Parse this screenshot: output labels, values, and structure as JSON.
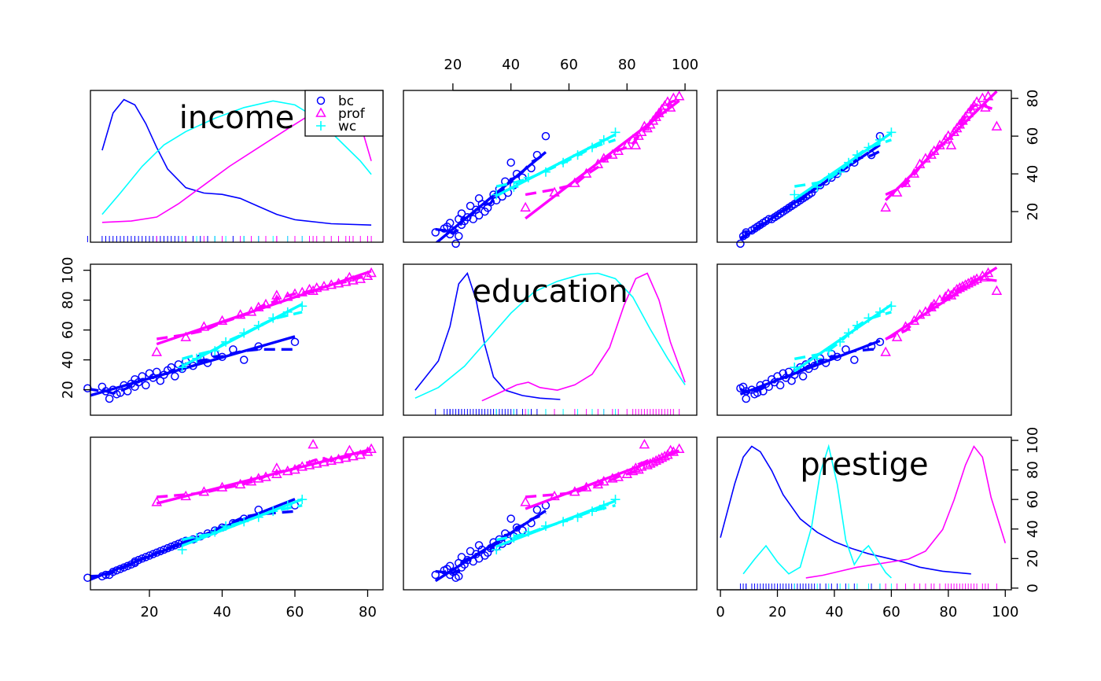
{
  "chart_data": {
    "type": "scatter",
    "title": "",
    "layout": "scatterplot-matrix",
    "variables": [
      "income",
      "education",
      "prestige"
    ],
    "colors": {
      "bc": "#0000ff",
      "prof": "#ff00ff",
      "wc": "#00ffff"
    },
    "legend": {
      "placement": "top-right of income panel",
      "entries": [
        {
          "name": "bc",
          "marker": "circle",
          "color": "#0000ff"
        },
        {
          "name": "prof",
          "marker": "triangle",
          "color": "#ff00ff"
        },
        {
          "name": "wc",
          "marker": "plus",
          "color": "#00ffff"
        }
      ]
    },
    "axes": {
      "income": {
        "range": [
          7,
          81
        ],
        "ticks": [
          20,
          40,
          60,
          80
        ],
        "tick_labels": [
          "20",
          "40",
          "60",
          "80"
        ]
      },
      "education": {
        "range": [
          7,
          100
        ],
        "ticks": [
          20,
          40,
          60,
          80,
          100
        ],
        "tick_labels": [
          "20",
          "40",
          "60",
          "80",
          "100"
        ]
      },
      "prestige": {
        "range": [
          3,
          98
        ],
        "ticks": [
          0,
          20,
          40,
          60,
          80,
          100
        ],
        "tick_labels": [
          "0",
          "20",
          "40",
          "60",
          "80",
          "100"
        ]
      }
    },
    "series": [
      {
        "name": "bc",
        "marker": "circle",
        "points": [
          [
            3,
            21,
            7
          ],
          [
            7,
            22,
            8
          ],
          [
            8,
            19,
            9
          ],
          [
            9,
            14,
            9
          ],
          [
            10,
            20,
            11
          ],
          [
            11,
            17,
            12
          ],
          [
            12,
            18,
            13
          ],
          [
            13,
            23,
            14
          ],
          [
            14,
            19,
            15
          ],
          [
            15,
            24,
            16
          ],
          [
            16,
            22,
            17
          ],
          [
            16,
            27,
            18
          ],
          [
            17,
            25,
            19
          ],
          [
            18,
            29,
            20
          ],
          [
            19,
            23,
            21
          ],
          [
            20,
            31,
            22
          ],
          [
            21,
            28,
            23
          ],
          [
            22,
            32,
            24
          ],
          [
            23,
            26,
            25
          ],
          [
            24,
            30,
            26
          ],
          [
            25,
            33,
            27
          ],
          [
            26,
            35,
            28
          ],
          [
            27,
            29,
            29
          ],
          [
            28,
            37,
            30
          ],
          [
            29,
            34,
            31
          ],
          [
            30,
            39,
            32
          ],
          [
            32,
            36,
            33
          ],
          [
            34,
            41,
            35
          ],
          [
            36,
            38,
            37
          ],
          [
            38,
            44,
            39
          ],
          [
            40,
            42,
            41
          ],
          [
            43,
            47,
            44
          ],
          [
            46,
            40,
            47
          ],
          [
            50,
            49,
            53
          ],
          [
            60,
            52,
            56
          ]
        ]
      },
      {
        "name": "prof",
        "marker": "triangle",
        "points": [
          [
            22,
            45,
            58
          ],
          [
            30,
            55,
            62
          ],
          [
            35,
            62,
            65
          ],
          [
            40,
            66,
            68
          ],
          [
            45,
            70,
            70
          ],
          [
            48,
            72,
            72
          ],
          [
            50,
            75,
            74
          ],
          [
            52,
            77,
            75
          ],
          [
            55,
            80,
            77
          ],
          [
            58,
            82,
            79
          ],
          [
            60,
            84,
            80
          ],
          [
            62,
            85,
            82
          ],
          [
            64,
            87,
            83
          ],
          [
            66,
            88,
            84
          ],
          [
            68,
            89,
            85
          ],
          [
            70,
            90,
            86
          ],
          [
            72,
            91,
            87
          ],
          [
            74,
            92,
            88
          ],
          [
            76,
            93,
            89
          ],
          [
            78,
            94,
            90
          ],
          [
            80,
            96,
            92
          ],
          [
            81,
            98,
            94
          ],
          [
            75,
            95,
            93
          ],
          [
            65,
            86,
            97
          ],
          [
            55,
            83,
            81
          ]
        ]
      },
      {
        "name": "wc",
        "marker": "plus",
        "points": [
          [
            29,
            35,
            26
          ],
          [
            33,
            41,
            34
          ],
          [
            38,
            46,
            38
          ],
          [
            41,
            52,
            42
          ],
          [
            46,
            58,
            45
          ],
          [
            50,
            63,
            48
          ],
          [
            54,
            68,
            52
          ],
          [
            58,
            72,
            56
          ],
          [
            62,
            76,
            60
          ]
        ]
      }
    ],
    "density_curves": {
      "income": [
        {
          "name": "bc",
          "x": [
            7,
            10,
            13,
            16,
            19,
            22,
            25,
            30,
            35,
            40,
            45,
            50,
            55,
            60,
            70,
            81
          ],
          "y": [
            0.62,
            0.9,
            1.0,
            0.96,
            0.82,
            0.64,
            0.48,
            0.34,
            0.3,
            0.29,
            0.26,
            0.2,
            0.14,
            0.1,
            0.07,
            0.06
          ]
        },
        {
          "name": "prof",
          "x": [
            7,
            15,
            22,
            28,
            35,
            42,
            50,
            58,
            65,
            72,
            78,
            81
          ],
          "y": [
            0.08,
            0.09,
            0.12,
            0.22,
            0.36,
            0.5,
            0.64,
            0.78,
            0.9,
            0.98,
            0.82,
            0.54
          ]
        },
        {
          "name": "wc",
          "x": [
            7,
            12,
            18,
            24,
            30,
            38,
            46,
            54,
            60,
            66,
            72,
            78,
            81
          ],
          "y": [
            0.14,
            0.3,
            0.5,
            0.66,
            0.76,
            0.86,
            0.94,
            0.99,
            0.96,
            0.86,
            0.7,
            0.54,
            0.44
          ]
        }
      ],
      "education": [
        {
          "name": "bc",
          "x": [
            7,
            15,
            19,
            22,
            25,
            28,
            31,
            34,
            38,
            44,
            50,
            57
          ],
          "y": [
            0.12,
            0.34,
            0.6,
            0.92,
            1.0,
            0.8,
            0.46,
            0.22,
            0.12,
            0.08,
            0.06,
            0.05
          ]
        },
        {
          "name": "prof",
          "x": [
            30,
            36,
            42,
            46,
            50,
            56,
            62,
            68,
            74,
            79,
            83,
            87,
            91,
            95,
            100
          ],
          "y": [
            0.04,
            0.1,
            0.16,
            0.18,
            0.14,
            0.12,
            0.16,
            0.24,
            0.44,
            0.76,
            0.96,
            1.0,
            0.8,
            0.48,
            0.18
          ]
        },
        {
          "name": "wc",
          "x": [
            7,
            15,
            24,
            32,
            40,
            48,
            56,
            64,
            70,
            76,
            82,
            88,
            94,
            100
          ],
          "y": [
            0.06,
            0.14,
            0.3,
            0.5,
            0.7,
            0.86,
            0.94,
            0.99,
            1.0,
            0.96,
            0.82,
            0.58,
            0.36,
            0.16
          ]
        }
      ],
      "prestige": [
        {
          "name": "bc",
          "x": [
            0,
            5,
            8,
            11,
            14,
            18,
            22,
            28,
            34,
            40,
            46,
            52,
            58,
            64,
            70,
            78,
            88
          ],
          "y": [
            0.32,
            0.72,
            0.92,
            1.0,
            0.96,
            0.82,
            0.64,
            0.46,
            0.36,
            0.29,
            0.24,
            0.2,
            0.17,
            0.14,
            0.1,
            0.07,
            0.05
          ]
        },
        {
          "name": "prof",
          "x": [
            30,
            36,
            42,
            48,
            54,
            60,
            66,
            72,
            78,
            82,
            86,
            89,
            92,
            95,
            100
          ],
          "y": [
            0.02,
            0.04,
            0.07,
            0.1,
            0.12,
            0.14,
            0.16,
            0.22,
            0.38,
            0.6,
            0.86,
            1.0,
            0.92,
            0.62,
            0.28
          ]
        },
        {
          "name": "wc",
          "x": [
            8,
            12,
            16,
            20,
            24,
            28,
            32,
            35,
            38,
            41,
            44,
            47,
            50,
            52,
            55,
            58,
            60
          ],
          "y": [
            0.05,
            0.16,
            0.26,
            0.14,
            0.05,
            0.1,
            0.4,
            0.8,
            1.0,
            0.72,
            0.3,
            0.12,
            0.22,
            0.26,
            0.16,
            0.06,
            0.02
          ]
        }
      ]
    }
  }
}
